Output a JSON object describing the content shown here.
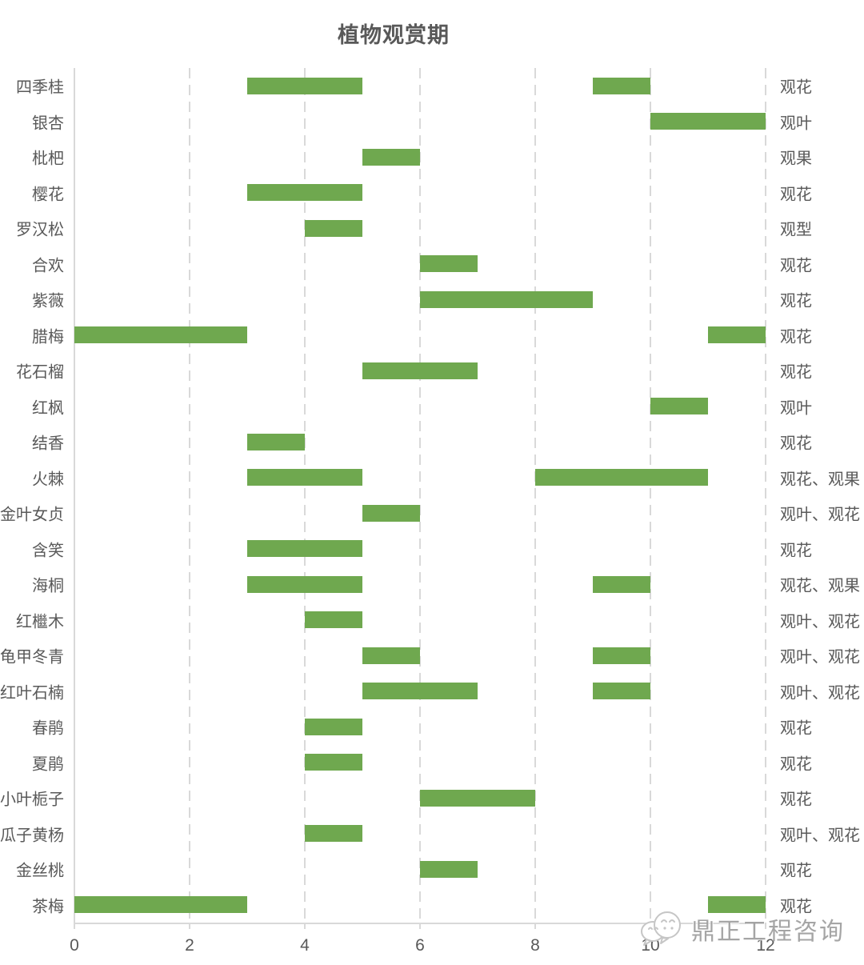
{
  "chart_data": {
    "type": "bar",
    "orientation": "horizontal-range",
    "title": "植物观赏期",
    "xlabel": "",
    "ylabel": "",
    "xlim": [
      0,
      12
    ],
    "x_ticks": [
      0,
      2,
      4,
      6,
      8,
      10,
      12
    ],
    "grid": "dashed-vertical",
    "rows": [
      {
        "name": "四季桂",
        "ranges": [
          [
            3,
            5
          ],
          [
            9,
            10
          ]
        ],
        "label": "观花"
      },
      {
        "name": "银杏",
        "ranges": [
          [
            10,
            12
          ]
        ],
        "label": "观叶"
      },
      {
        "name": "枇杷",
        "ranges": [
          [
            5,
            6
          ]
        ],
        "label": "观果"
      },
      {
        "name": "樱花",
        "ranges": [
          [
            3,
            5
          ]
        ],
        "label": "观花"
      },
      {
        "name": "罗汉松",
        "ranges": [
          [
            4,
            5
          ]
        ],
        "label": "观型"
      },
      {
        "name": "合欢",
        "ranges": [
          [
            6,
            7
          ]
        ],
        "label": "观花"
      },
      {
        "name": "紫薇",
        "ranges": [
          [
            6,
            9
          ]
        ],
        "label": "观花"
      },
      {
        "name": "腊梅",
        "ranges": [
          [
            0,
            3
          ],
          [
            11,
            12
          ]
        ],
        "label": "观花"
      },
      {
        "name": "花石榴",
        "ranges": [
          [
            5,
            7
          ]
        ],
        "label": "观花"
      },
      {
        "name": "红枫",
        "ranges": [
          [
            10,
            11
          ]
        ],
        "label": "观叶"
      },
      {
        "name": "结香",
        "ranges": [
          [
            3,
            4
          ]
        ],
        "label": "观花"
      },
      {
        "name": "火棘",
        "ranges": [
          [
            3,
            5
          ],
          [
            8,
            11
          ]
        ],
        "label": "观花、观果"
      },
      {
        "name": "金叶女贞",
        "ranges": [
          [
            5,
            6
          ]
        ],
        "label": "观叶、观花"
      },
      {
        "name": "含笑",
        "ranges": [
          [
            3,
            5
          ]
        ],
        "label": "观花"
      },
      {
        "name": "海桐",
        "ranges": [
          [
            3,
            5
          ],
          [
            9,
            10
          ]
        ],
        "label": "观花、观果"
      },
      {
        "name": "红檵木",
        "ranges": [
          [
            4,
            5
          ]
        ],
        "label": "观叶、观花"
      },
      {
        "name": "龟甲冬青",
        "ranges": [
          [
            5,
            6
          ],
          [
            9,
            10
          ]
        ],
        "label": "观叶、观花"
      },
      {
        "name": "红叶石楠",
        "ranges": [
          [
            5,
            7
          ],
          [
            9,
            10
          ]
        ],
        "label": "观叶、观花"
      },
      {
        "name": "春鹃",
        "ranges": [
          [
            4,
            5
          ]
        ],
        "label": "观花"
      },
      {
        "name": "夏鹃",
        "ranges": [
          [
            4,
            5
          ]
        ],
        "label": "观花"
      },
      {
        "name": "小叶栀子",
        "ranges": [
          [
            6,
            8
          ]
        ],
        "label": "观花"
      },
      {
        "name": "瓜子黄杨",
        "ranges": [
          [
            4,
            5
          ]
        ],
        "label": "观叶、观花"
      },
      {
        "name": "金丝桃",
        "ranges": [
          [
            6,
            7
          ]
        ],
        "label": "观花"
      },
      {
        "name": "茶梅",
        "ranges": [
          [
            0,
            3
          ],
          [
            11,
            12
          ]
        ],
        "label": "观花"
      }
    ]
  },
  "colors": {
    "bar": "#6FA84F",
    "grid": "#D9D9D9",
    "text": "#595959",
    "watermark": "#9C9C9C"
  },
  "watermark": {
    "text": "鼎正工程咨询"
  }
}
